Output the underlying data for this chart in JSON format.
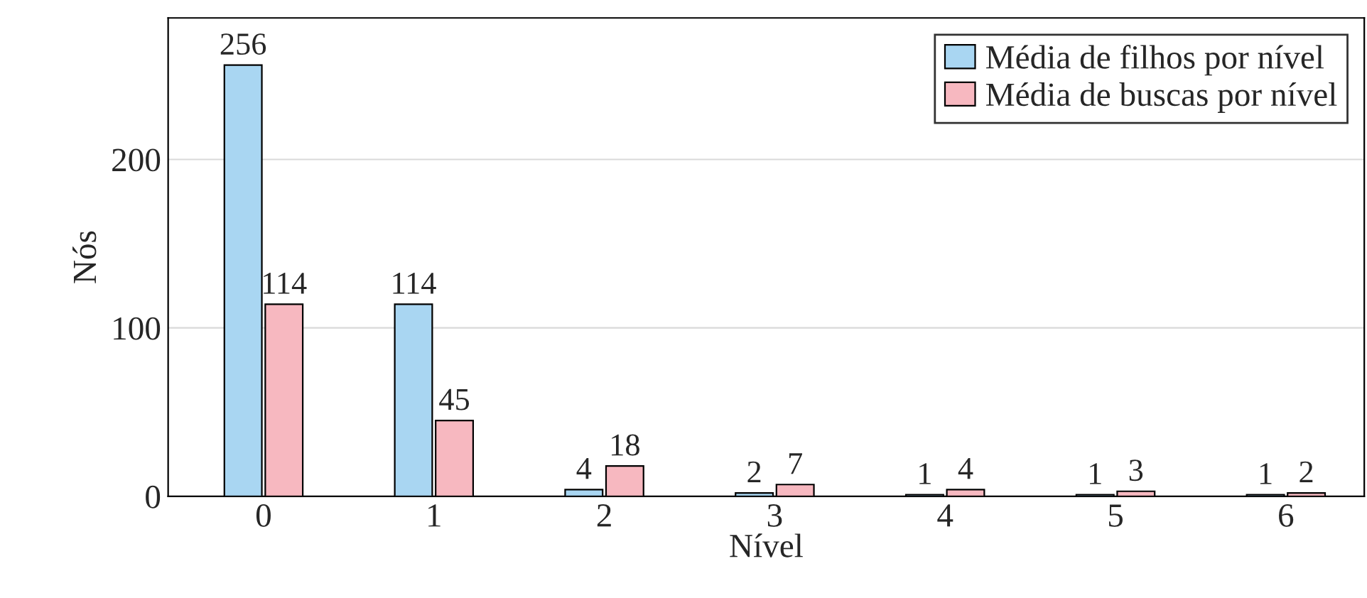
{
  "chart_data": {
    "type": "bar",
    "xlabel": "Nível",
    "ylabel": "Nós",
    "categories": [
      "0",
      "1",
      "2",
      "3",
      "4",
      "5",
      "6"
    ],
    "series": [
      {
        "name": "Média de filhos por nível",
        "color": "#a9d6f2",
        "values": [
          256,
          114,
          4,
          2,
          1,
          1,
          1
        ]
      },
      {
        "name": "Média de buscas por nível",
        "color": "#f7b8c0",
        "values": [
          114,
          45,
          18,
          7,
          4,
          3,
          2
        ]
      }
    ],
    "ylim": [
      0,
      284
    ],
    "yticks": [
      0,
      100,
      200
    ],
    "grid": "y",
    "legend": "top right",
    "data_labels": true
  }
}
